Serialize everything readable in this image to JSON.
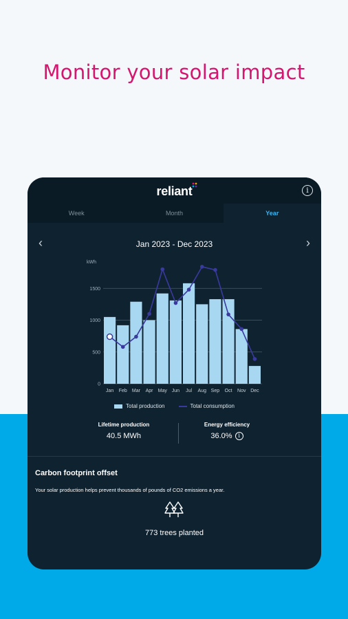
{
  "headline": "Monitor your solar impact",
  "app": {
    "logo_text": "reliant",
    "info_icon": "info-icon"
  },
  "tabs": [
    {
      "label": "Week",
      "active": false
    },
    {
      "label": "Month",
      "active": false
    },
    {
      "label": "Year",
      "active": true
    }
  ],
  "range": {
    "title": "Jan 2023 - Dec 2023",
    "prev_icon": "chevron-left-icon",
    "next_icon": "chevron-right-icon"
  },
  "chart_data": {
    "type": "bar",
    "ylabel": "kWh",
    "ylim": [
      0,
      2000
    ],
    "yticks": [
      "0",
      "500",
      "1000",
      "1500"
    ],
    "categories": [
      "Jan",
      "Feb",
      "Mar",
      "Apr",
      "May",
      "Jun",
      "Jul",
      "Aug",
      "Sep",
      "Oct",
      "Nov",
      "Dec"
    ],
    "series": [
      {
        "name": "Total production",
        "type": "bar",
        "color": "#a8d7f1",
        "values": [
          1050,
          920,
          1290,
          1000,
          1420,
          1310,
          1580,
          1250,
          1330,
          1330,
          860,
          280
        ]
      },
      {
        "name": "Total consumption",
        "type": "line",
        "color": "#3a3a9e",
        "values": [
          740,
          580,
          740,
          1100,
          1800,
          1270,
          1480,
          1840,
          1790,
          1090,
          860,
          390
        ]
      }
    ],
    "grid": true,
    "legend": "bottom"
  },
  "stats": {
    "lifetime_label": "Lifetime production",
    "lifetime_value": "40.5 MWh",
    "efficiency_label": "Energy efficiency",
    "efficiency_value": "36.0%"
  },
  "carbon": {
    "title": "Carbon footprint offset",
    "description": "Your solar production helps prevent thousands of pounds of CO2 emissions a year.",
    "trees_text": "773 trees planted",
    "trees_icon": "trees-icon"
  }
}
